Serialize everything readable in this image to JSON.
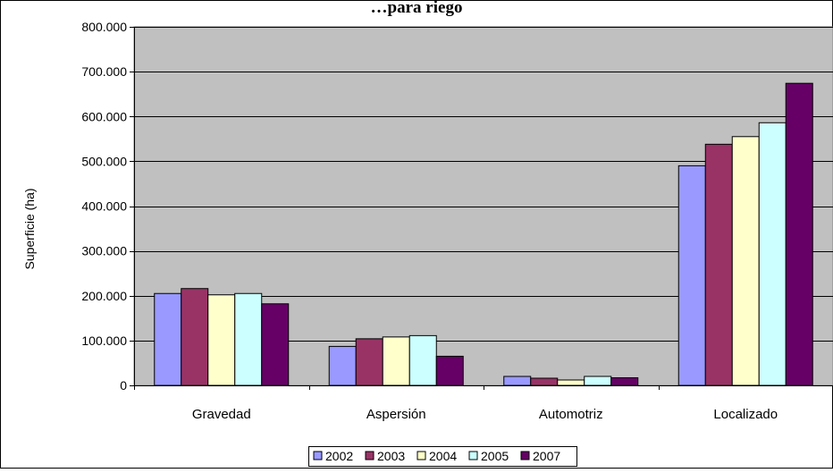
{
  "chart_data": {
    "type": "bar",
    "title": "…para riego",
    "xlabel": "",
    "ylabel": "Superficie (ha)",
    "categories": [
      "Gravedad",
      "Aspersión",
      "Automotriz",
      "Localizado"
    ],
    "ylim": [
      0,
      800000
    ],
    "yticks": [
      0,
      100000,
      200000,
      300000,
      400000,
      500000,
      600000,
      700000,
      800000
    ],
    "ytick_labels": [
      "0",
      "100.000",
      "200.000",
      "300.000",
      "400.000",
      "500.000",
      "600.000",
      "700.000",
      "800.000"
    ],
    "grid": true,
    "legend_position": "bottom",
    "plot_background": "#c0c0c0",
    "series": [
      {
        "name": "2002",
        "color": "#9999ff",
        "values": [
          205000,
          87000,
          20000,
          490000
        ]
      },
      {
        "name": "2003",
        "color": "#993366",
        "values": [
          216000,
          104000,
          16000,
          538000
        ]
      },
      {
        "name": "2004",
        "color": "#ffffcc",
        "values": [
          202000,
          108000,
          12000,
          555000
        ]
      },
      {
        "name": "2005",
        "color": "#ccffff",
        "values": [
          205000,
          111000,
          20000,
          586000
        ]
      },
      {
        "name": "2007",
        "color": "#660066",
        "values": [
          182000,
          65000,
          17000,
          674000
        ]
      }
    ]
  }
}
